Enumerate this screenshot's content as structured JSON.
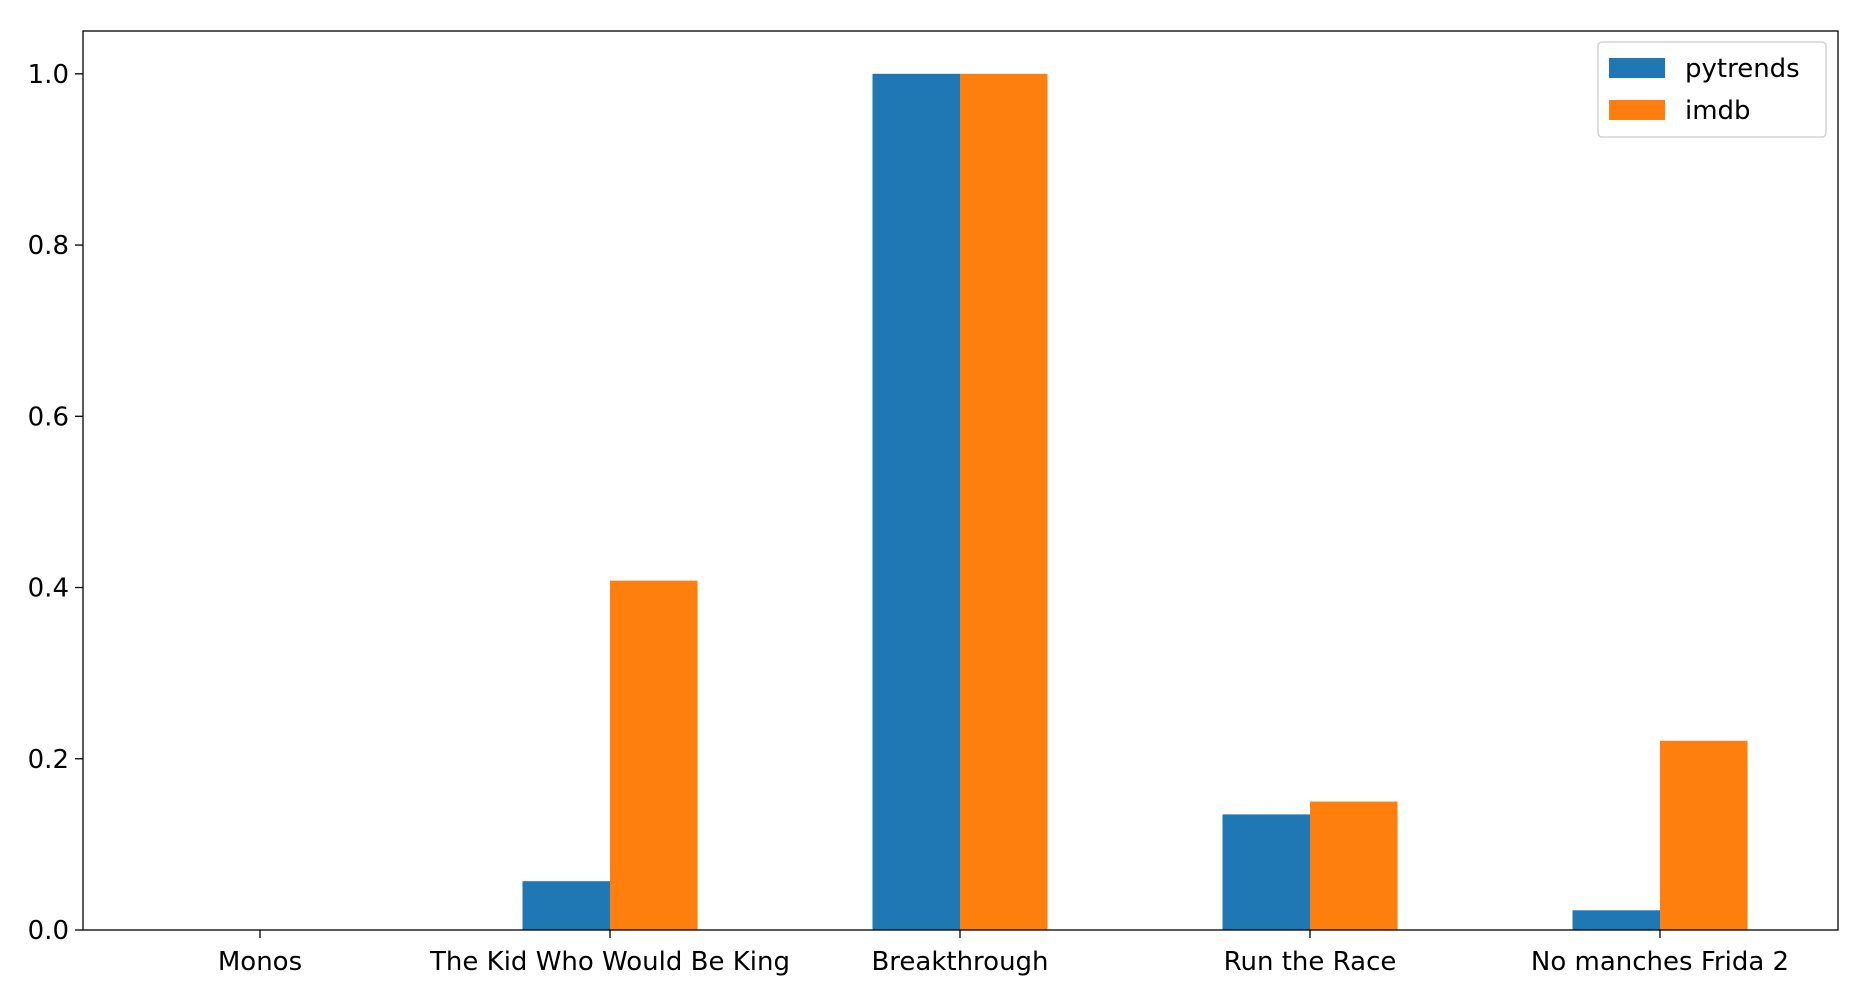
{
  "chart_data": {
    "type": "bar",
    "categories": [
      "Monos",
      "The Kid Who Would Be King",
      "Breakthrough",
      "Run the Race",
      "No manches Frida 2"
    ],
    "series": [
      {
        "name": "pytrends",
        "values": [
          0.0,
          0.057,
          1.0,
          0.135,
          0.023
        ],
        "color": "#1f77b4"
      },
      {
        "name": "imdb",
        "values": [
          0.0,
          0.408,
          1.0,
          0.15,
          0.221
        ],
        "color": "#ff7f0e"
      }
    ],
    "yticks": [
      "0.0",
      "0.2",
      "0.4",
      "0.6",
      "0.8",
      "1.0"
    ],
    "ylim": [
      0,
      1.05
    ],
    "title": "",
    "xlabel": "",
    "ylabel": "",
    "legend_position": "top-right",
    "grid": false
  }
}
